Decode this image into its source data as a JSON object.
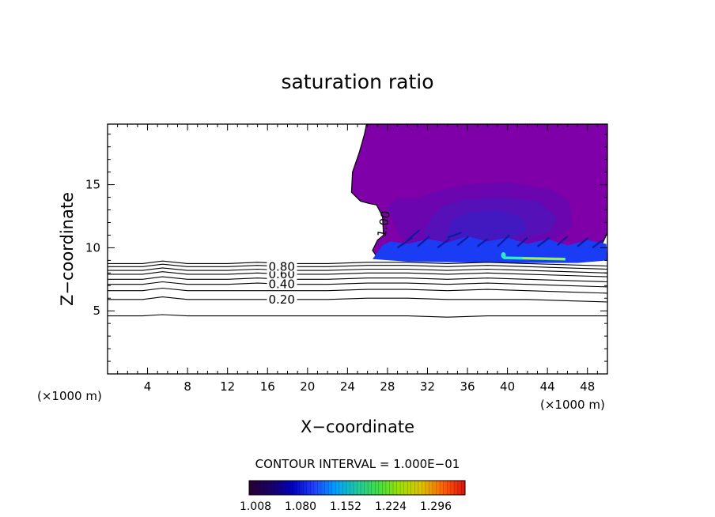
{
  "chart_data": {
    "type": "contour",
    "title": "saturation ratio",
    "xlabel": "X−coordinate",
    "ylabel": "Z−coordinate",
    "x_unit_left": "(×1000 m)",
    "x_unit_right": "(×1000 m)",
    "xlim": [
      0,
      50
    ],
    "ylim": [
      0,
      19.8
    ],
    "x_ticks": [
      4,
      8,
      12,
      16,
      20,
      24,
      28,
      32,
      36,
      40,
      44,
      48
    ],
    "y_ticks": [
      5,
      10,
      15
    ],
    "contour_interval_text": "CONTOUR INTERVAL = 1.000E−01",
    "contour_lines": [
      {
        "level": 0.1,
        "label": "",
        "z": [
          4.6,
          4.6,
          4.7,
          4.6,
          4.6,
          4.6,
          4.6,
          4.6,
          4.6,
          4.6,
          4.5,
          4.6,
          4.6,
          4.6,
          4.6
        ]
      },
      {
        "level": 0.2,
        "label": "0.20",
        "z": [
          5.9,
          5.9,
          6.1,
          5.9,
          5.9,
          5.9,
          5.9,
          5.9,
          6.0,
          6.0,
          5.9,
          5.9,
          5.9,
          5.8,
          5.7
        ]
      },
      {
        "level": 0.3,
        "label": "",
        "z": [
          6.6,
          6.6,
          6.8,
          6.6,
          6.6,
          6.6,
          6.6,
          6.6,
          6.7,
          6.7,
          6.6,
          6.7,
          6.6,
          6.5,
          6.4
        ]
      },
      {
        "level": 0.4,
        "label": "0.40",
        "z": [
          7.1,
          7.1,
          7.3,
          7.1,
          7.1,
          7.2,
          7.1,
          7.1,
          7.2,
          7.2,
          7.1,
          7.2,
          7.1,
          7.0,
          6.9
        ]
      },
      {
        "level": 0.5,
        "label": "",
        "z": [
          7.5,
          7.5,
          7.7,
          7.5,
          7.5,
          7.6,
          7.5,
          7.5,
          7.6,
          7.6,
          7.5,
          7.6,
          7.5,
          7.4,
          7.3
        ]
      },
      {
        "level": 0.6,
        "label": "0.60",
        "z": [
          7.9,
          7.9,
          8.1,
          7.9,
          7.9,
          8.0,
          7.9,
          7.9,
          8.0,
          8.0,
          7.9,
          8.0,
          7.9,
          7.8,
          7.7
        ]
      },
      {
        "level": 0.7,
        "label": "",
        "z": [
          8.2,
          8.2,
          8.4,
          8.2,
          8.2,
          8.3,
          8.2,
          8.2,
          8.3,
          8.3,
          8.2,
          8.3,
          8.2,
          8.1,
          8.0
        ]
      },
      {
        "level": 0.8,
        "label": "0.80",
        "z": [
          8.5,
          8.5,
          8.7,
          8.5,
          8.5,
          8.6,
          8.5,
          8.5,
          8.6,
          8.6,
          8.5,
          8.6,
          8.5,
          8.4,
          8.3
        ]
      },
      {
        "level": 0.9,
        "label": "",
        "z": [
          8.75,
          8.75,
          8.95,
          8.75,
          8.75,
          8.85,
          8.75,
          8.75,
          8.85,
          8.85,
          8.75,
          8.85,
          8.75,
          8.65,
          8.55
        ]
      }
    ],
    "contour_x": [
      0,
      3.5,
      5.5,
      8,
      12,
      15,
      18,
      22,
      26,
      30,
      34,
      38,
      42,
      46,
      50
    ],
    "cloud_label": "1.00",
    "colorbar": {
      "ticks": [
        "1.008",
        "1.080",
        "1.152",
        "1.224",
        "1.296"
      ],
      "colors": [
        "#2a0033",
        "#1a0066",
        "#0000c0",
        "#2040ff",
        "#00a0ff",
        "#20c8a0",
        "#40e040",
        "#a0e000",
        "#e0c000",
        "#ff6000",
        "#e01010"
      ]
    },
    "colors": {
      "cloud_outer": "#7f00a8",
      "cloud_mid": "#6a05b0",
      "cloud_inner": "#5510b8",
      "cloud_deep": "#4218c0",
      "cloud_base": "#1b3cf5",
      "streak_cyan": "#2fe8c8",
      "streak_yellow": "#e8e800"
    }
  }
}
